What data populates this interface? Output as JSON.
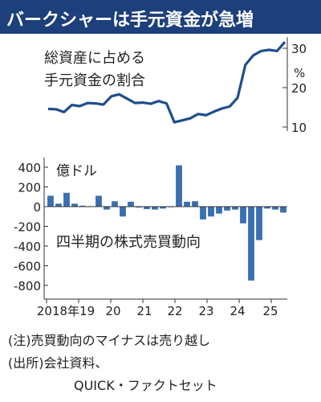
{
  "title": "バークシャーは手元資金が急増",
  "chart_data": [
    {
      "type": "line",
      "annotation": "総資産に占める\n手元資金の割合",
      "unit": "%",
      "y_ticks": [
        10,
        20,
        30
      ],
      "ylim": [
        10,
        32
      ],
      "x": [
        2018.0,
        2018.25,
        2018.5,
        2018.75,
        2019.0,
        2019.25,
        2019.5,
        2019.75,
        2020.0,
        2020.25,
        2020.5,
        2020.75,
        2021.0,
        2021.25,
        2021.5,
        2021.75,
        2022.0,
        2022.25,
        2022.5,
        2022.75,
        2023.0,
        2023.25,
        2023.5,
        2023.75,
        2024.0,
        2024.25,
        2024.5,
        2024.75,
        2025.0,
        2025.25,
        2025.5
      ],
      "values": [
        14.6,
        14.5,
        13.8,
        15.6,
        15.3,
        16.1,
        16.0,
        15.7,
        17.8,
        18.3,
        17.2,
        16.1,
        16.2,
        15.9,
        16.6,
        16.0,
        11.2,
        11.7,
        12.2,
        13.3,
        13.0,
        13.9,
        14.7,
        15.2,
        17.4,
        25.8,
        28.2,
        29.3,
        29.6,
        29.3,
        31.6
      ]
    },
    {
      "type": "bar",
      "annotation": "四半期の株式売買動向",
      "unit": "億ドル",
      "y_ticks": [
        400,
        200,
        0,
        -200,
        -400,
        -600,
        -800
      ],
      "ylim": [
        -850,
        450
      ],
      "x_tick_labels": [
        "2018年19",
        "20",
        "21",
        "22",
        "23",
        "24",
        "25"
      ],
      "values": [
        110,
        30,
        140,
        30,
        10,
        5,
        110,
        -30,
        55,
        -100,
        50,
        -10,
        -25,
        -30,
        -20,
        -5,
        420,
        50,
        55,
        -130,
        -100,
        -70,
        -40,
        -30,
        -170,
        -750,
        -340,
        -20,
        -30,
        -60
      ]
    }
  ],
  "notes": {
    "line1": "(注)売買動向のマイナスは売り越し",
    "line2": "(出所)会社資料、",
    "line3": "QUICK・ファクトセット"
  },
  "colors": {
    "title_bg": "#1d3f7c",
    "line": "#1f4e8c",
    "bar": "#3a6fb0"
  }
}
